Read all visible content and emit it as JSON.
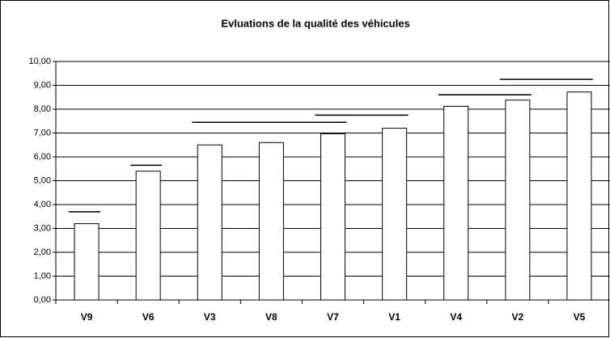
{
  "chart_data": {
    "type": "bar",
    "title": "Evluations de la qualité des véhicules",
    "categories": [
      "V9",
      "V6",
      "V3",
      "V8",
      "V7",
      "V1",
      "V4",
      "V2",
      "V5"
    ],
    "values": [
      3.2,
      5.4,
      6.5,
      6.6,
      6.97,
      7.2,
      8.12,
      8.38,
      8.72
    ],
    "color": "#ffffff",
    "ylim": [
      0,
      10
    ],
    "yticks": [
      {
        "value": 0,
        "label": "0,00"
      },
      {
        "value": 1,
        "label": "1,00"
      },
      {
        "value": 2,
        "label": "2,00"
      },
      {
        "value": 3,
        "label": "3,00"
      },
      {
        "value": 4,
        "label": "4,00"
      },
      {
        "value": 5,
        "label": "5,00"
      },
      {
        "value": 6,
        "label": "6,00"
      },
      {
        "value": 7,
        "label": "7,00"
      },
      {
        "value": 8,
        "label": "8,00"
      },
      {
        "value": 9,
        "label": "9,00"
      },
      {
        "value": 10,
        "label": "10,00"
      }
    ],
    "grid": true,
    "groups": [
      {
        "from": "V9",
        "to": "V9",
        "value": 3.7
      },
      {
        "from": "V6",
        "to": "V6",
        "value": 5.65
      },
      {
        "from": "V3",
        "to": "V7",
        "value": 7.45
      },
      {
        "from": "V7",
        "to": "V1",
        "value": 7.75
      },
      {
        "from": "V4",
        "to": "V2",
        "value": 8.6
      },
      {
        "from": "V2",
        "to": "V5",
        "value": 9.25
      }
    ]
  }
}
